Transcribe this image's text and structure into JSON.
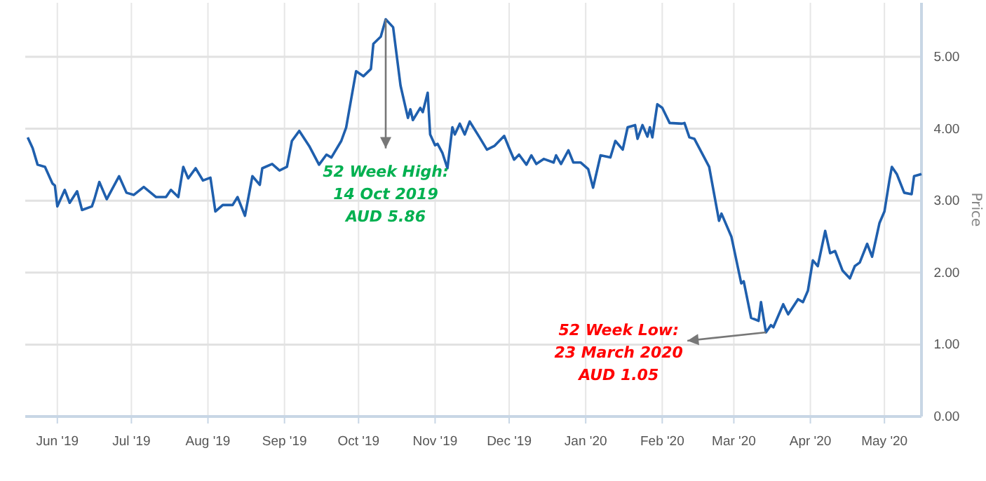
{
  "chart_data": {
    "type": "line",
    "ylabel": "Price",
    "x": [
      "2019-05-20",
      "2019-05-22",
      "2019-05-24",
      "2019-05-27",
      "2019-05-30",
      "2019-05-31",
      "2019-06-01",
      "2019-06-04",
      "2019-06-06",
      "2019-06-09",
      "2019-06-11",
      "2019-06-15",
      "2019-06-16",
      "2019-06-18",
      "2019-06-21",
      "2019-06-26",
      "2019-06-29",
      "2019-07-02",
      "2019-07-06",
      "2019-07-11",
      "2019-07-15",
      "2019-07-17",
      "2019-07-20",
      "2019-07-22",
      "2019-07-24",
      "2019-07-27",
      "2019-07-30",
      "2019-08-02",
      "2019-08-04",
      "2019-08-07",
      "2019-08-11",
      "2019-08-13",
      "2019-08-16",
      "2019-08-19",
      "2019-08-22",
      "2019-08-23",
      "2019-08-27",
      "2019-08-30",
      "2019-09-02",
      "2019-09-04",
      "2019-09-07",
      "2019-09-11",
      "2019-09-15",
      "2019-09-18",
      "2019-09-20",
      "2019-09-24",
      "2019-09-26",
      "2019-09-30",
      "2019-10-03",
      "2019-10-06",
      "2019-10-07",
      "2019-10-10",
      "2019-10-12",
      "2019-10-15",
      "2019-10-18",
      "2019-10-21",
      "2019-10-22",
      "2019-10-23",
      "2019-10-26",
      "2019-10-27",
      "2019-10-29",
      "2019-10-30",
      "2019-11-01",
      "2019-11-02",
      "2019-11-04",
      "2019-11-06",
      "2019-11-08",
      "2019-11-09",
      "2019-11-11",
      "2019-11-13",
      "2019-11-15",
      "2019-11-19",
      "2019-11-22",
      "2019-11-25",
      "2019-11-29",
      "2019-12-01",
      "2019-12-03",
      "2019-12-05",
      "2019-12-08",
      "2019-12-10",
      "2019-12-12",
      "2019-12-15",
      "2019-12-19",
      "2019-12-20",
      "2019-12-22",
      "2019-12-25",
      "2019-12-27",
      "2019-12-30",
      "2020-01-02",
      "2020-01-04",
      "2020-01-07",
      "2020-01-11",
      "2020-01-13",
      "2020-01-16",
      "2020-01-18",
      "2020-01-21",
      "2020-01-22",
      "2020-01-24",
      "2020-01-26",
      "2020-01-27",
      "2020-01-28",
      "2020-01-30",
      "2020-02-01",
      "2020-02-04",
      "2020-02-09",
      "2020-02-10",
      "2020-02-12",
      "2020-02-14",
      "2020-02-20",
      "2020-02-24",
      "2020-02-25",
      "2020-02-29",
      "2020-03-04",
      "2020-03-05",
      "2020-03-08",
      "2020-03-11",
      "2020-03-12",
      "2020-03-14",
      "2020-03-16",
      "2020-03-17",
      "2020-03-21",
      "2020-03-23",
      "2020-03-27",
      "2020-03-29",
      "2020-03-31",
      "2020-04-02",
      "2020-04-04",
      "2020-04-07",
      "2020-04-09",
      "2020-04-11",
      "2020-04-14",
      "2020-04-17",
      "2020-04-19",
      "2020-04-21",
      "2020-04-24",
      "2020-04-26",
      "2020-04-29",
      "2020-05-01",
      "2020-05-03",
      "2020-05-04",
      "2020-05-06",
      "2020-05-09",
      "2020-05-12",
      "2020-05-13",
      "2020-05-16"
    ],
    "series": [
      {
        "color": "#1f5fad",
        "values": [
          3.88,
          3.73,
          3.5,
          3.47,
          3.24,
          3.21,
          2.92,
          3.15,
          2.97,
          3.13,
          2.87,
          2.92,
          3.02,
          3.26,
          3.02,
          3.34,
          3.11,
          3.08,
          3.19,
          3.05,
          3.05,
          3.15,
          3.05,
          3.47,
          3.31,
          3.45,
          3.28,
          3.32,
          2.85,
          2.94,
          2.94,
          3.05,
          2.79,
          3.34,
          3.22,
          3.45,
          3.51,
          3.42,
          3.47,
          3.83,
          3.97,
          3.76,
          3.5,
          3.64,
          3.6,
          3.83,
          4.02,
          4.8,
          4.73,
          4.83,
          5.18,
          5.28,
          5.52,
          5.41,
          4.6,
          4.15,
          4.27,
          4.12,
          4.29,
          4.23,
          4.5,
          3.92,
          3.77,
          3.79,
          3.66,
          3.45,
          4.02,
          3.92,
          4.07,
          3.92,
          4.1,
          3.88,
          3.71,
          3.76,
          3.9,
          3.73,
          3.57,
          3.64,
          3.5,
          3.63,
          3.51,
          3.58,
          3.53,
          3.63,
          3.51,
          3.7,
          3.53,
          3.53,
          3.44,
          3.18,
          3.63,
          3.6,
          3.83,
          3.71,
          4.02,
          4.05,
          3.86,
          4.05,
          3.89,
          4.02,
          3.88,
          4.34,
          4.29,
          4.08,
          4.07,
          4.08,
          3.88,
          3.86,
          3.47,
          2.72,
          2.82,
          2.5,
          1.85,
          1.88,
          1.37,
          1.33,
          1.59,
          1.17,
          1.27,
          1.24,
          1.56,
          1.42,
          1.63,
          1.59,
          1.75,
          2.17,
          2.09,
          2.58,
          2.27,
          2.3,
          2.03,
          1.92,
          2.09,
          2.14,
          2.4,
          2.22,
          2.69,
          2.85,
          3.28,
          3.47,
          3.37,
          3.11,
          3.09,
          3.34,
          3.37
        ]
      }
    ],
    "xlim": [
      "2019-05-19",
      "2020-05-16"
    ],
    "xticks": [
      {
        "value": "2019-06-01",
        "label": "Jun '19"
      },
      {
        "value": "2019-07-01",
        "label": "Jul '19"
      },
      {
        "value": "2019-08-01",
        "label": "Aug '19"
      },
      {
        "value": "2019-09-01",
        "label": "Sep '19"
      },
      {
        "value": "2019-10-01",
        "label": "Oct '19"
      },
      {
        "value": "2019-11-01",
        "label": "Nov '19"
      },
      {
        "value": "2019-12-01",
        "label": "Dec '19"
      },
      {
        "value": "2020-01-01",
        "label": "Jan '20"
      },
      {
        "value": "2020-02-01",
        "label": "Feb '20"
      },
      {
        "value": "2020-03-01",
        "label": "Mar '20"
      },
      {
        "value": "2020-04-01",
        "label": "Apr '20"
      },
      {
        "value": "2020-05-01",
        "label": "May '20"
      }
    ],
    "ylim": [
      0,
      5.75
    ],
    "yticks": [
      {
        "value": 0,
        "label": "0.00"
      },
      {
        "value": 1,
        "label": "1.00"
      },
      {
        "value": 2,
        "label": "2.00"
      },
      {
        "value": 3,
        "label": "3.00"
      },
      {
        "value": 4,
        "label": "4.00"
      },
      {
        "value": 5,
        "label": "5.00"
      }
    ],
    "grid": true,
    "annotations": [
      {
        "text": "52 Week High:\n14 Oct 2019\nAUD 5.86",
        "x": "2019-10-12",
        "y": 5.52
      },
      {
        "text": "52 Week Low:\n23 March 2020\nAUD 1.05",
        "x": "2020-03-14",
        "y": 1.17
      }
    ]
  }
}
